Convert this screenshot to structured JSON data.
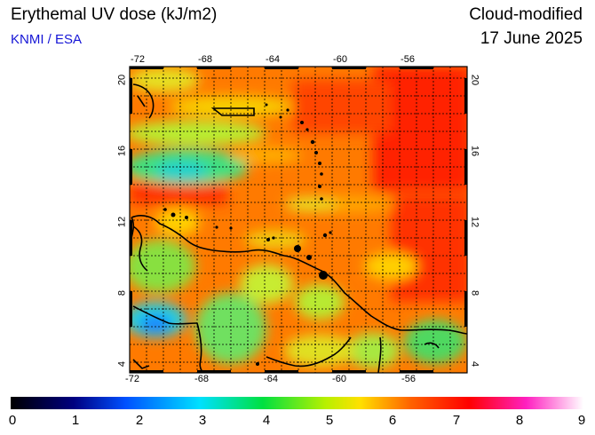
{
  "header": {
    "title": "Erythemal UV dose (kJ/m2)",
    "credit": "KNMI / ESA",
    "product": "Cloud-modified",
    "date": "17 June 2025"
  },
  "map": {
    "lon_ticks": [
      "-72",
      "-68",
      "-64",
      "-60",
      "-56"
    ],
    "lat_ticks": [
      "4",
      "8",
      "12",
      "16",
      "20"
    ],
    "lon_range": [
      -72,
      -52
    ],
    "lat_range": [
      3.5,
      20.5
    ],
    "coastline_color": "#000000",
    "grid_style": "dotted"
  },
  "colorbar": {
    "labels": [
      "0",
      "1",
      "2",
      "3",
      "4",
      "5",
      "6",
      "7",
      "8",
      "9"
    ],
    "stops": [
      "#000000",
      "#000080",
      "#0050ff",
      "#00e0ff",
      "#00e040",
      "#b8f000",
      "#ffe000",
      "#ff6000",
      "#ff0000",
      "#ff20c0",
      "#ffffff"
    ]
  },
  "colors": {
    "credit": "#1515d6"
  }
}
